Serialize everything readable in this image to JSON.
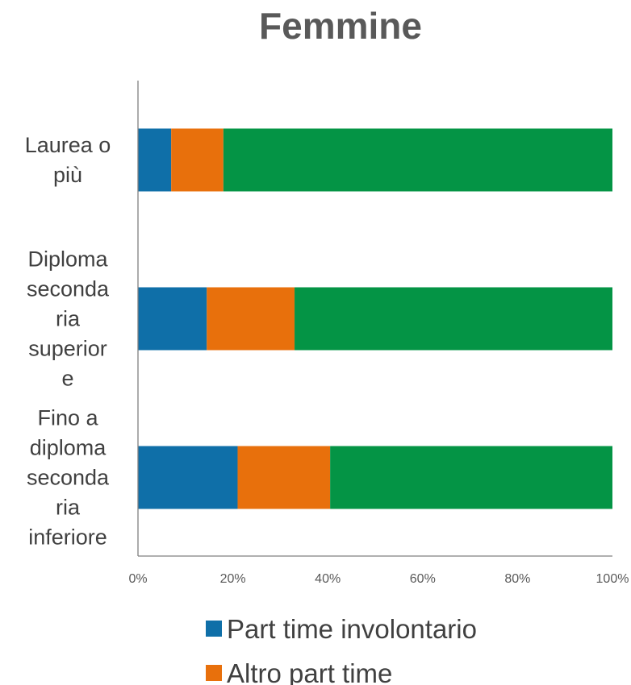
{
  "chart_data": {
    "type": "bar",
    "orientation": "horizontal",
    "stacked": true,
    "title": "Femmine",
    "xlabel": "",
    "ylabel": "",
    "xlim": [
      0,
      100
    ],
    "categories": [
      [
        "Laurea o",
        "più"
      ],
      [
        "Diploma",
        "seconda",
        "ria",
        "superior",
        "e"
      ],
      [
        "Fino a",
        "diploma",
        "seconda",
        "ria",
        "inferiore"
      ]
    ],
    "ticks": [
      "0%",
      "20%",
      "40%",
      "60%",
      "80%",
      "100%"
    ],
    "series": [
      {
        "name": "Part time involontario",
        "color": "#0f6fa8",
        "values": [
          7,
          14.5,
          21
        ]
      },
      {
        "name": "Altro part time",
        "color": "#e8700c",
        "values": [
          11,
          18.5,
          19.5
        ]
      },
      {
        "color": "#049445",
        "values": [
          82,
          67,
          59.5
        ]
      }
    ],
    "grid": false,
    "legend": "bottom"
  }
}
